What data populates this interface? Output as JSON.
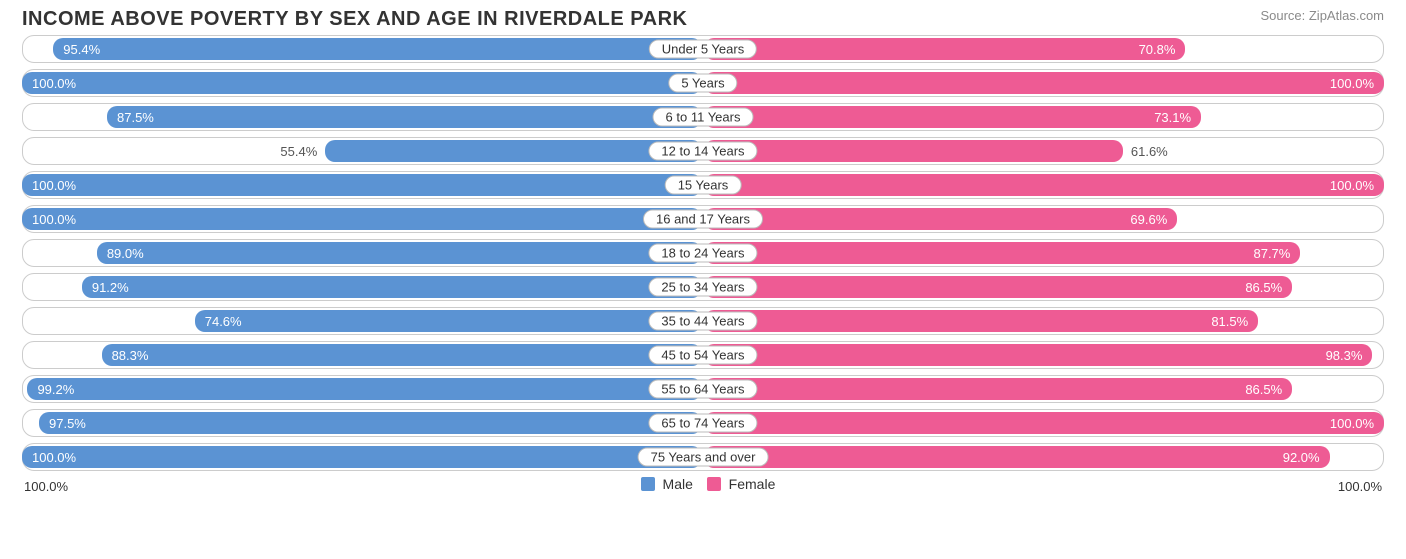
{
  "title": "INCOME ABOVE POVERTY BY SEX AND AGE IN RIVERDALE PARK",
  "source": "Source: ZipAtlas.com",
  "colors": {
    "male": "#5b93d3",
    "female": "#ee5b94",
    "border": "#cccccc",
    "text": "#333333"
  },
  "axis_left": "100.0%",
  "axis_right": "100.0%",
  "legend": {
    "male": "Male",
    "female": "Female"
  },
  "short_threshold": 62,
  "rows": [
    {
      "label": "Under 5 Years",
      "male": 95.4,
      "male_label": "95.4%",
      "female": 70.8,
      "female_label": "70.8%"
    },
    {
      "label": "5 Years",
      "male": 100.0,
      "male_label": "100.0%",
      "female": 100.0,
      "female_label": "100.0%"
    },
    {
      "label": "6 to 11 Years",
      "male": 87.5,
      "male_label": "87.5%",
      "female": 73.1,
      "female_label": "73.1%"
    },
    {
      "label": "12 to 14 Years",
      "male": 55.4,
      "male_label": "55.4%",
      "female": 61.6,
      "female_label": "61.6%"
    },
    {
      "label": "15 Years",
      "male": 100.0,
      "male_label": "100.0%",
      "female": 100.0,
      "female_label": "100.0%"
    },
    {
      "label": "16 and 17 Years",
      "male": 100.0,
      "male_label": "100.0%",
      "female": 69.6,
      "female_label": "69.6%"
    },
    {
      "label": "18 to 24 Years",
      "male": 89.0,
      "male_label": "89.0%",
      "female": 87.7,
      "female_label": "87.7%"
    },
    {
      "label": "25 to 34 Years",
      "male": 91.2,
      "male_label": "91.2%",
      "female": 86.5,
      "female_label": "86.5%"
    },
    {
      "label": "35 to 44 Years",
      "male": 74.6,
      "male_label": "74.6%",
      "female": 81.5,
      "female_label": "81.5%"
    },
    {
      "label": "45 to 54 Years",
      "male": 88.3,
      "male_label": "88.3%",
      "female": 98.3,
      "female_label": "98.3%"
    },
    {
      "label": "55 to 64 Years",
      "male": 99.2,
      "male_label": "99.2%",
      "female": 86.5,
      "female_label": "86.5%"
    },
    {
      "label": "65 to 74 Years",
      "male": 97.5,
      "male_label": "97.5%",
      "female": 100.0,
      "female_label": "100.0%"
    },
    {
      "label": "75 Years and over",
      "male": 100.0,
      "male_label": "100.0%",
      "female": 92.0,
      "female_label": "92.0%"
    }
  ]
}
